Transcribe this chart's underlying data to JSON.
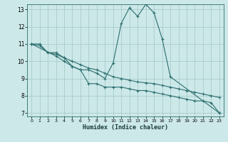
{
  "xlabel": "Humidex (Indice chaleur)",
  "bg_color": "#cce8e8",
  "grid_color": "#aacccc",
  "line_color": "#2d6e6e",
  "xlim": [
    -0.5,
    23.5
  ],
  "ylim": [
    6.8,
    13.3
  ],
  "yticks": [
    7,
    8,
    9,
    10,
    11,
    12,
    13
  ],
  "xticks": [
    0,
    1,
    2,
    3,
    4,
    5,
    6,
    7,
    8,
    9,
    10,
    11,
    12,
    13,
    14,
    15,
    16,
    17,
    18,
    19,
    20,
    21,
    22,
    23
  ],
  "lines": [
    {
      "x": [
        0,
        1,
        2,
        3,
        4,
        5,
        6,
        7,
        8,
        9,
        10,
        11,
        12,
        13,
        14,
        15,
        16,
        17,
        23
      ],
      "y": [
        11.0,
        11.0,
        10.5,
        10.5,
        10.2,
        9.7,
        9.5,
        9.5,
        9.3,
        9.0,
        9.9,
        12.2,
        13.1,
        12.6,
        13.3,
        12.8,
        11.3,
        9.1,
        7.0
      ]
    },
    {
      "x": [
        0,
        1,
        2,
        3,
        4,
        5,
        6,
        7,
        8,
        9,
        10,
        11,
        12,
        13,
        14,
        15,
        16,
        17,
        18,
        19,
        20,
        21,
        22,
        23
      ],
      "y": [
        11.0,
        10.9,
        10.5,
        10.4,
        10.2,
        10.0,
        9.8,
        9.6,
        9.5,
        9.3,
        9.1,
        9.0,
        8.9,
        8.8,
        8.75,
        8.7,
        8.6,
        8.5,
        8.4,
        8.3,
        8.2,
        8.1,
        8.0,
        7.9
      ]
    },
    {
      "x": [
        0,
        3,
        4,
        5,
        6,
        7,
        8,
        9,
        10,
        11,
        12,
        13,
        14,
        15,
        16,
        17,
        18,
        19,
        20,
        21,
        22,
        23
      ],
      "y": [
        11.0,
        10.3,
        10.0,
        9.7,
        9.5,
        8.7,
        8.7,
        8.5,
        8.5,
        8.5,
        8.4,
        8.3,
        8.3,
        8.2,
        8.1,
        8.0,
        7.9,
        7.8,
        7.7,
        7.7,
        7.6,
        7.0
      ]
    }
  ]
}
